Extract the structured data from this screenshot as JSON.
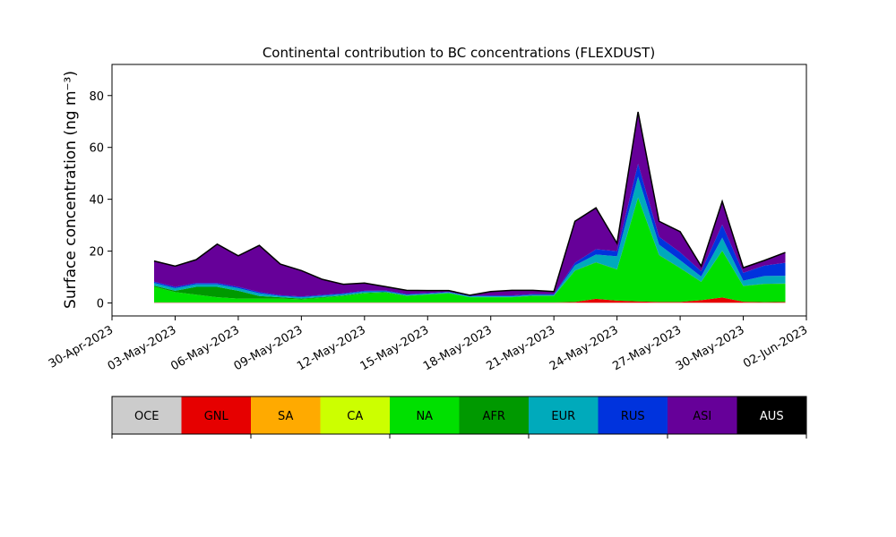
{
  "chart_data": {
    "type": "area",
    "title": "Continental contribution to BC concentrations (FLEXDUST)",
    "ylabel": "Surface concentration (ng m⁻³)",
    "xlabel": "",
    "xlim": [
      "2023-04-30",
      "2023-06-02"
    ],
    "ylim": [
      -5,
      92
    ],
    "yticks": [
      0,
      20,
      40,
      60,
      80
    ],
    "xticks": [
      "30-Apr-2023",
      "03-May-2023",
      "06-May-2023",
      "09-May-2023",
      "12-May-2023",
      "15-May-2023",
      "18-May-2023",
      "21-May-2023",
      "24-May-2023",
      "27-May-2023",
      "30-May-2023",
      "02-Jun-2023"
    ],
    "legend_placement": "below chart, horizontal color bar",
    "grid": false,
    "x": [
      "2023-05-02",
      "2023-05-03",
      "2023-05-04",
      "2023-05-05",
      "2023-05-06",
      "2023-05-07",
      "2023-05-08",
      "2023-05-09",
      "2023-05-10",
      "2023-05-11",
      "2023-05-12",
      "2023-05-13",
      "2023-05-14",
      "2023-05-15",
      "2023-05-16",
      "2023-05-17",
      "2023-05-18",
      "2023-05-19",
      "2023-05-20",
      "2023-05-21",
      "2023-05-22",
      "2023-05-23",
      "2023-05-24",
      "2023-05-25",
      "2023-05-26",
      "2023-05-27",
      "2023-05-28",
      "2023-05-29",
      "2023-05-30",
      "2023-05-31",
      "2023-06-01"
    ],
    "series": [
      {
        "name": "OCE",
        "color": "#cccccc",
        "values": [
          0.1,
          0.1,
          0.1,
          0.1,
          0.1,
          0.1,
          0.1,
          0.1,
          0.1,
          0.1,
          0.1,
          0.1,
          0.1,
          0.1,
          0.1,
          0.1,
          0.1,
          0.1,
          0.1,
          0.1,
          0.1,
          0.1,
          0.1,
          0.1,
          0.1,
          0.1,
          0.1,
          0.1,
          0.1,
          0.1,
          0.1
        ]
      },
      {
        "name": "GNL",
        "color": "#e60000",
        "values": [
          0.1,
          0.1,
          0.1,
          0.1,
          0.1,
          0.1,
          0.1,
          0.1,
          0.1,
          0.1,
          0.1,
          0.1,
          0.1,
          0.1,
          0.1,
          0.1,
          0.1,
          0.1,
          0.1,
          0.1,
          0.3,
          1.5,
          0.8,
          0.5,
          0.3,
          0.3,
          1.0,
          2.0,
          0.4,
          0.2,
          0.3
        ]
      },
      {
        "name": "SA",
        "color": "#ffaa00",
        "values": [
          0,
          0,
          0,
          0,
          0,
          0,
          0,
          0,
          0,
          0,
          0,
          0,
          0,
          0,
          0,
          0,
          0,
          0,
          0,
          0,
          0,
          0,
          0,
          0,
          0,
          0,
          0,
          0,
          0,
          0,
          0
        ]
      },
      {
        "name": "CA",
        "color": "#ccff00",
        "values": [
          0,
          0,
          0,
          0,
          0,
          0,
          0,
          0,
          0,
          0,
          0,
          0,
          0,
          0,
          0,
          0,
          0,
          0,
          0,
          0,
          0,
          0,
          0,
          0,
          0,
          0,
          0,
          0,
          0,
          0,
          0
        ]
      },
      {
        "name": "NA",
        "color": "#00e000",
        "values": [
          6,
          4,
          3,
          2,
          1.5,
          1.5,
          1.5,
          1.2,
          1.8,
          2.5,
          3.5,
          3.8,
          2.5,
          3,
          3.5,
          2,
          2,
          2,
          2.5,
          2.5,
          12,
          14,
          12,
          40,
          18,
          13,
          7,
          18,
          6,
          7,
          7
        ]
      },
      {
        "name": "AFR",
        "color": "#009900",
        "values": [
          0.5,
          0.5,
          3,
          4,
          3,
          1,
          0.5,
          0.3,
          0.3,
          0.2,
          0.2,
          0.2,
          0.1,
          0.1,
          0.1,
          0.1,
          0.1,
          0.1,
          0.1,
          0.1,
          0.1,
          0.1,
          0.1,
          0.1,
          0.1,
          0.1,
          0.1,
          0.1,
          0.1,
          0.1,
          0.1
        ]
      },
      {
        "name": "EUR",
        "color": "#00aabb",
        "values": [
          1,
          1,
          1,
          1,
          1,
          1,
          0.5,
          0.5,
          0.5,
          0.5,
          0.5,
          0.3,
          0.3,
          0.3,
          0.3,
          0.3,
          0.3,
          0.3,
          0.3,
          0.3,
          2,
          3,
          5,
          8,
          4,
          3,
          2,
          5,
          2,
          3,
          3
        ]
      },
      {
        "name": "RUS",
        "color": "#0033dd",
        "values": [
          0.5,
          0.5,
          0.5,
          0.5,
          0.5,
          0.5,
          0.3,
          0.3,
          0.3,
          0.3,
          0.3,
          0.3,
          0.3,
          0.2,
          0.2,
          0.2,
          0.3,
          0.3,
          0.3,
          0.3,
          1,
          2,
          2,
          5,
          3,
          3,
          2,
          5,
          3,
          4,
          5
        ]
      },
      {
        "name": "ASI",
        "color": "#660099",
        "values": [
          8,
          8,
          9,
          15,
          12,
          18,
          12,
          10,
          6,
          3.5,
          3,
          1.5,
          1.5,
          1,
          0.5,
          0.2,
          1.5,
          2,
          1.5,
          1,
          16,
          16,
          3,
          20,
          6,
          8,
          2,
          9,
          2,
          2,
          4
        ]
      },
      {
        "name": "AUS",
        "color": "#000000",
        "values": [
          0,
          0,
          0,
          0,
          0,
          0,
          0,
          0,
          0,
          0,
          0,
          0,
          0,
          0,
          0,
          0,
          0,
          0,
          0,
          0,
          0,
          0,
          0,
          0,
          0,
          0,
          0,
          0,
          0,
          0,
          0
        ]
      }
    ]
  }
}
